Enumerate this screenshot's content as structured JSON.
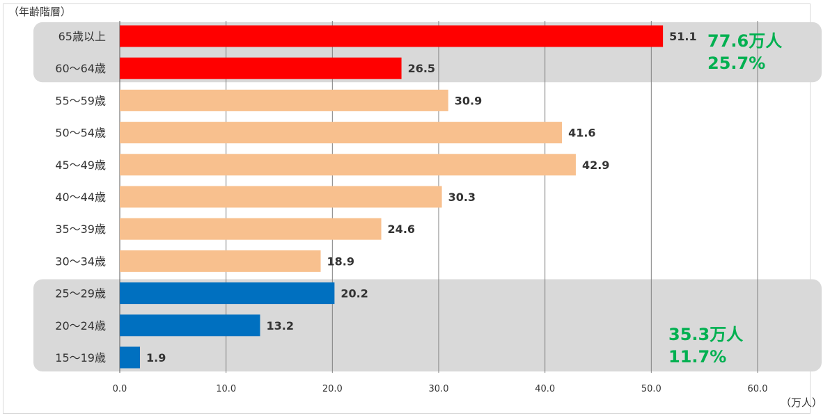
{
  "chart_data": {
    "type": "bar",
    "orientation": "horizontal",
    "ylabel": "（年齢階層）",
    "xlabel": "（万人）",
    "xlim": [
      0,
      60
    ],
    "xticks": [
      "0.0",
      "10.0",
      "20.0",
      "30.0",
      "40.0",
      "50.0",
      "60.0"
    ],
    "grid": true,
    "categories": [
      "65歳以上",
      "60～64歳",
      "55～59歳",
      "50～54歳",
      "45～49歳",
      "40～44歳",
      "35～39歳",
      "30～34歳",
      "25～29歳",
      "20～24歳",
      "15～19歳"
    ],
    "values": [
      51.1,
      26.5,
      30.9,
      41.6,
      42.9,
      30.3,
      24.6,
      18.9,
      20.2,
      13.2,
      1.9
    ],
    "value_labels": [
      "51.1",
      "26.5",
      "30.9",
      "41.6",
      "42.9",
      "30.3",
      "24.6",
      "18.9",
      "20.2",
      "13.2",
      "1.9"
    ],
    "bar_colors": [
      "#ff0000",
      "#ff0000",
      "#f8c08e",
      "#f8c08e",
      "#f8c08e",
      "#f8c08e",
      "#f8c08e",
      "#f8c08e",
      "#0070c0",
      "#0070c0",
      "#0070c0"
    ],
    "groups": [
      {
        "first": 0,
        "last": 1,
        "annotation_lines": [
          "77.6万人",
          "25.7%"
        ]
      },
      {
        "first": 8,
        "last": 10,
        "annotation_lines": [
          "35.3万人",
          "11.7%"
        ]
      }
    ],
    "annotation_color": "#00b050",
    "group_background": "#d9d9d9"
  }
}
